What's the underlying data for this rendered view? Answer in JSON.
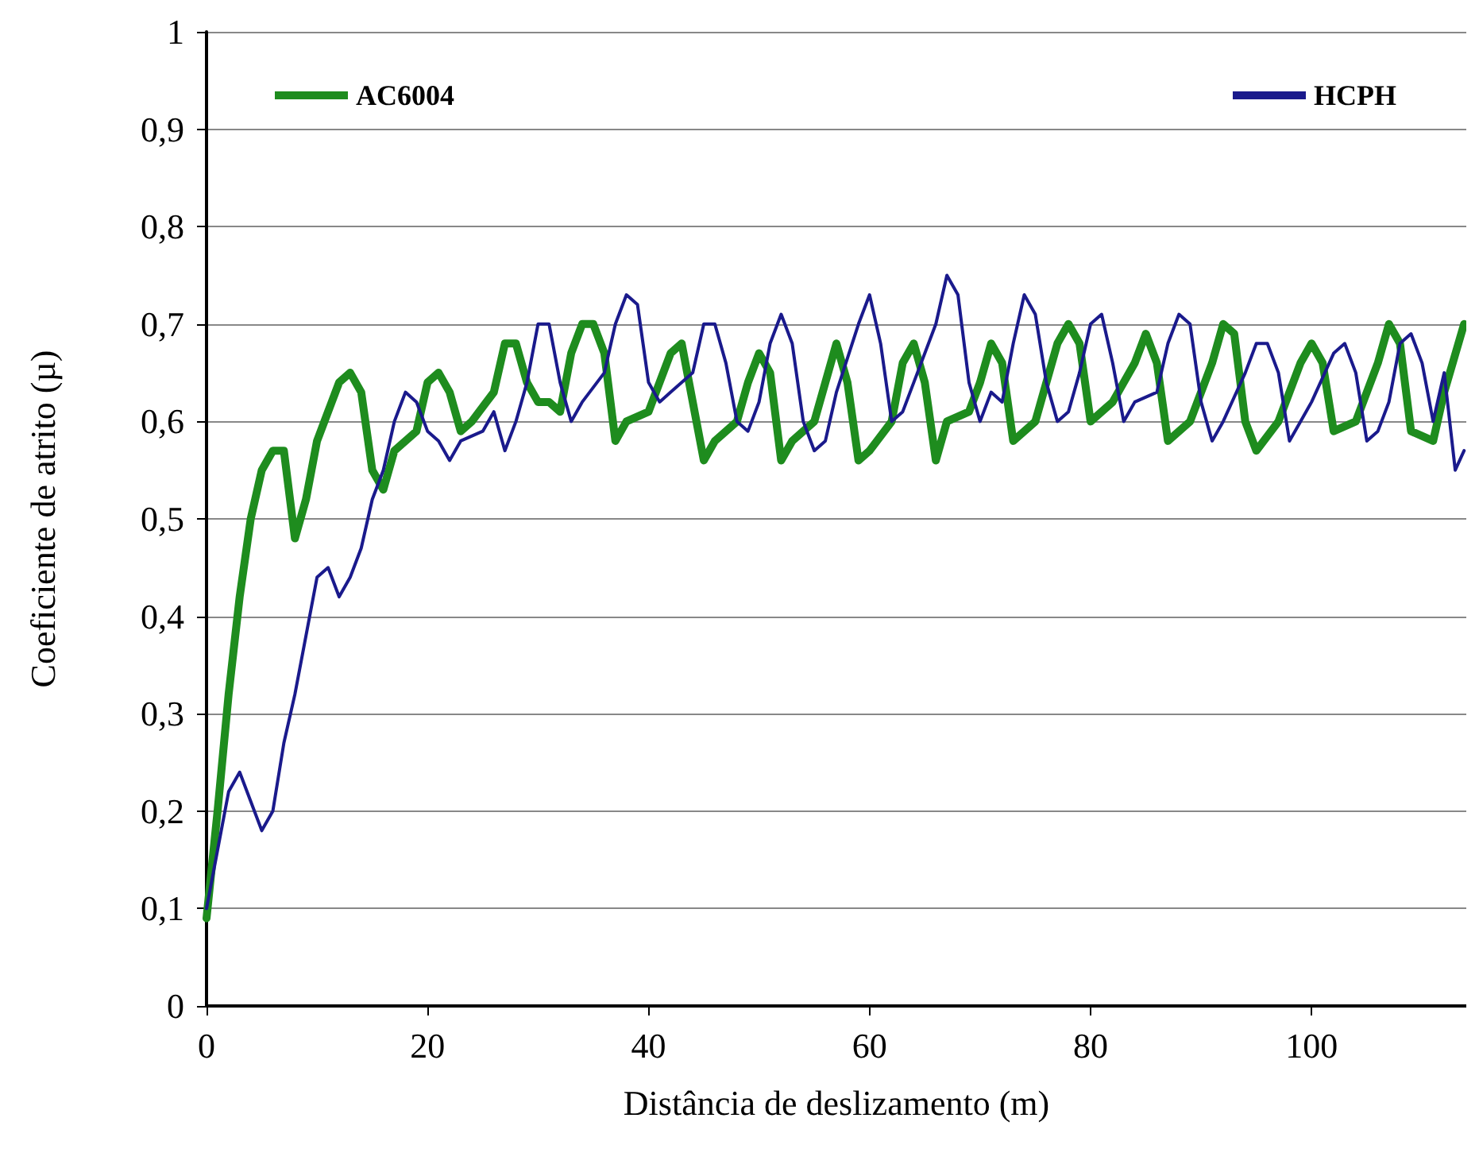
{
  "chart_data": {
    "type": "line",
    "xlabel": "Distância de deslizamento (m)",
    "ylabel": "Coeficiente de atrito (µ)",
    "xlim": [
      0,
      114
    ],
    "xticks": [
      0,
      20,
      40,
      60,
      80,
      100
    ],
    "ylim": [
      0,
      1
    ],
    "yticks": [
      {
        "value": 0,
        "label": "0"
      },
      {
        "value": 0.1,
        "label": "0,1"
      },
      {
        "value": 0.2,
        "label": "0,2"
      },
      {
        "value": 0.3,
        "label": "0,3"
      },
      {
        "value": 0.4,
        "label": "0,4"
      },
      {
        "value": 0.5,
        "label": "0,5"
      },
      {
        "value": 0.6,
        "label": "0,6"
      },
      {
        "value": 0.7,
        "label": "0,7"
      },
      {
        "value": 0.8,
        "label": "0,8"
      },
      {
        "value": 0.9,
        "label": "0,9"
      },
      {
        "value": 1,
        "label": "1"
      }
    ],
    "grid": "y",
    "legend": "top",
    "marker": "none",
    "line_style": "solid",
    "series": [
      {
        "name": "AC6004",
        "color": "#1e8c1e",
        "x": [
          0,
          1,
          2,
          3,
          4,
          5,
          6,
          7,
          8,
          9,
          10,
          11,
          12,
          13,
          14,
          15,
          16,
          17,
          18,
          19,
          20,
          21,
          22,
          23,
          24,
          26,
          27,
          28,
          29,
          30,
          31,
          32,
          33,
          34,
          35,
          36,
          37,
          38,
          40,
          42,
          43,
          44,
          45,
          46,
          48,
          49,
          50,
          51,
          52,
          53,
          55,
          56,
          57,
          58,
          59,
          60,
          62,
          63,
          64,
          65,
          66,
          67,
          69,
          70,
          71,
          72,
          73,
          75,
          77,
          78,
          79,
          80,
          82,
          84,
          85,
          86,
          87,
          89,
          91,
          92,
          93,
          94,
          95,
          97,
          99,
          100,
          101,
          102,
          104,
          106,
          107,
          108,
          109,
          111,
          112,
          113.8
        ],
        "values": [
          0.09,
          0.2,
          0.32,
          0.42,
          0.5,
          0.55,
          0.57,
          0.57,
          0.48,
          0.52,
          0.58,
          0.61,
          0.64,
          0.65,
          0.63,
          0.55,
          0.53,
          0.57,
          0.58,
          0.59,
          0.64,
          0.65,
          0.63,
          0.59,
          0.6,
          0.63,
          0.68,
          0.68,
          0.64,
          0.62,
          0.62,
          0.61,
          0.67,
          0.7,
          0.7,
          0.67,
          0.58,
          0.6,
          0.61,
          0.67,
          0.68,
          0.62,
          0.56,
          0.58,
          0.6,
          0.64,
          0.67,
          0.65,
          0.56,
          0.58,
          0.6,
          0.64,
          0.68,
          0.64,
          0.56,
          0.57,
          0.6,
          0.66,
          0.68,
          0.64,
          0.56,
          0.6,
          0.61,
          0.64,
          0.68,
          0.66,
          0.58,
          0.6,
          0.68,
          0.7,
          0.68,
          0.6,
          0.62,
          0.66,
          0.69,
          0.66,
          0.58,
          0.6,
          0.66,
          0.7,
          0.69,
          0.6,
          0.57,
          0.6,
          0.66,
          0.68,
          0.66,
          0.59,
          0.6,
          0.66,
          0.7,
          0.68,
          0.59,
          0.58,
          0.63,
          0.7
        ]
      },
      {
        "name": "HCPH",
        "color": "#1a1a8c",
        "x": [
          0,
          1,
          2,
          3,
          4,
          5,
          6,
          7,
          8,
          9,
          10,
          11,
          12,
          13,
          14,
          15,
          16,
          17,
          18,
          19,
          20,
          21,
          22,
          23,
          25,
          26,
          27,
          28,
          29,
          30,
          31,
          32,
          33,
          34,
          36,
          37,
          38,
          39,
          40,
          41,
          42,
          44,
          45,
          46,
          47,
          48,
          49,
          50,
          51,
          52,
          53,
          54,
          55,
          56,
          57,
          59,
          60,
          61,
          62,
          63,
          64,
          66,
          67,
          68,
          69,
          70,
          71,
          72,
          73,
          74,
          75,
          76,
          77,
          78,
          79,
          80,
          81,
          82,
          83,
          84,
          86,
          87,
          88,
          89,
          90,
          91,
          92,
          94,
          95,
          96,
          97,
          98,
          99,
          100,
          102,
          103,
          104,
          105,
          106,
          107,
          108,
          109,
          110,
          111,
          112,
          113,
          113.8
        ],
        "values": [
          0.1,
          0.16,
          0.22,
          0.24,
          0.21,
          0.18,
          0.2,
          0.27,
          0.32,
          0.38,
          0.44,
          0.45,
          0.42,
          0.44,
          0.47,
          0.52,
          0.55,
          0.6,
          0.63,
          0.62,
          0.59,
          0.58,
          0.56,
          0.58,
          0.59,
          0.61,
          0.57,
          0.6,
          0.64,
          0.7,
          0.7,
          0.64,
          0.6,
          0.62,
          0.65,
          0.7,
          0.73,
          0.72,
          0.64,
          0.62,
          0.63,
          0.65,
          0.7,
          0.7,
          0.66,
          0.6,
          0.59,
          0.62,
          0.68,
          0.71,
          0.68,
          0.6,
          0.57,
          0.58,
          0.63,
          0.7,
          0.73,
          0.68,
          0.6,
          0.61,
          0.64,
          0.7,
          0.75,
          0.73,
          0.64,
          0.6,
          0.63,
          0.62,
          0.68,
          0.73,
          0.71,
          0.64,
          0.6,
          0.61,
          0.65,
          0.7,
          0.71,
          0.66,
          0.6,
          0.62,
          0.63,
          0.68,
          0.71,
          0.7,
          0.62,
          0.58,
          0.6,
          0.65,
          0.68,
          0.68,
          0.65,
          0.58,
          0.6,
          0.62,
          0.67,
          0.68,
          0.65,
          0.58,
          0.59,
          0.62,
          0.68,
          0.69,
          0.66,
          0.6,
          0.65,
          0.55,
          0.57
        ]
      }
    ]
  }
}
